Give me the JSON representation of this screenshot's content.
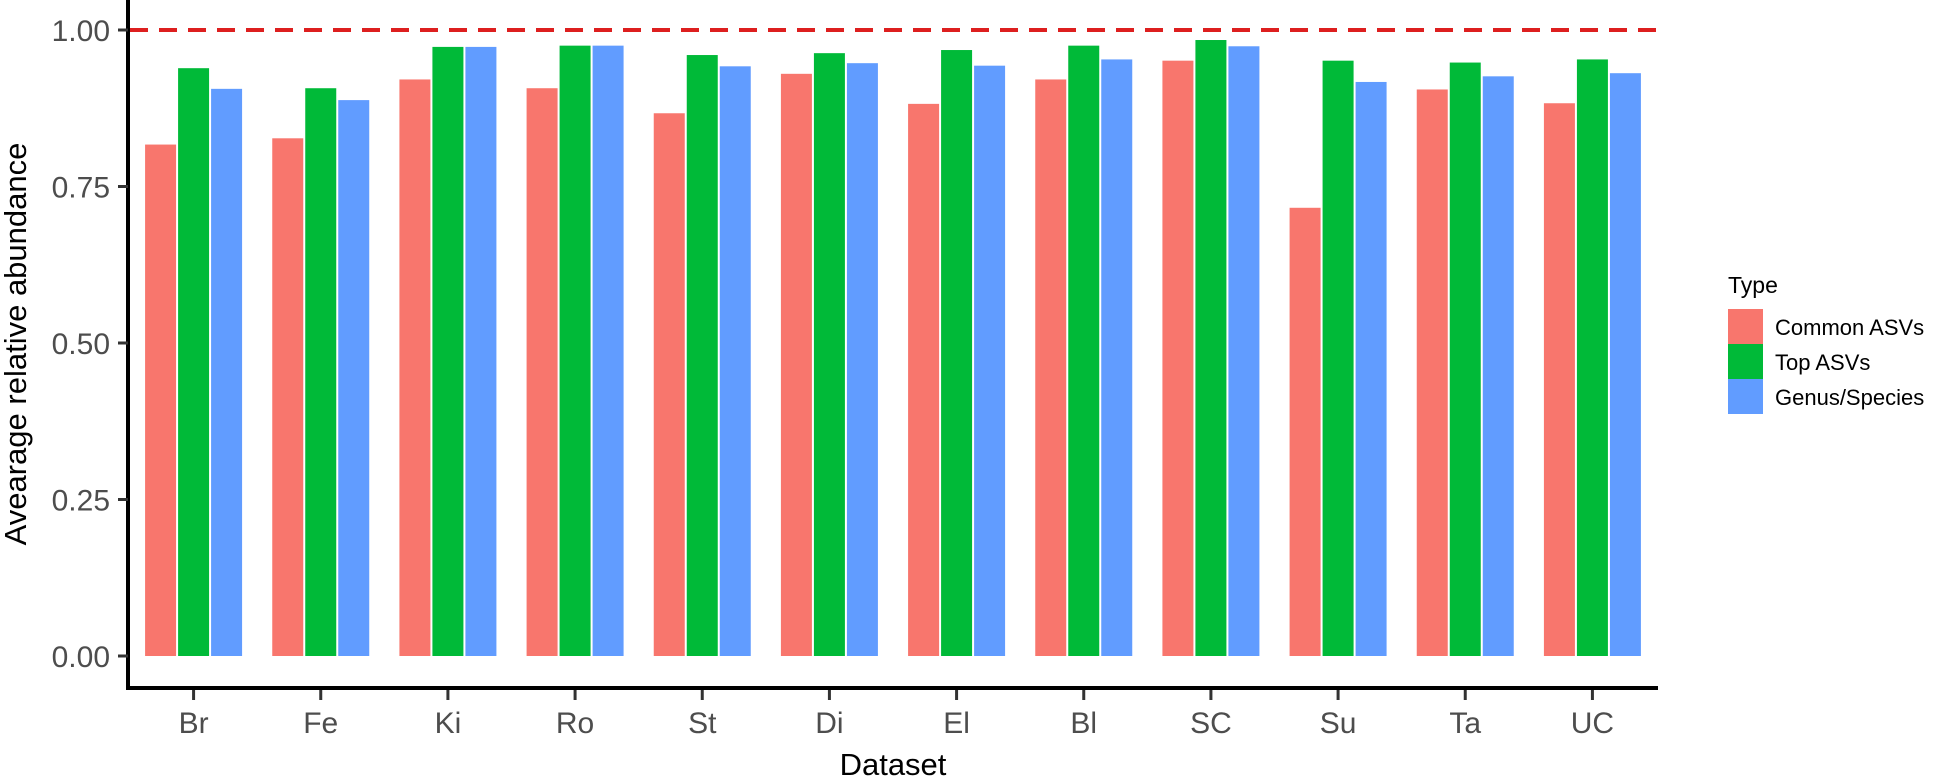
{
  "chart_data": {
    "type": "bar",
    "title": "",
    "xlabel": "Dataset",
    "ylabel": "Avearage relative abundance",
    "ylim": [
      0,
      1
    ],
    "yticks": [
      "0.00",
      "0.25",
      "0.50",
      "0.75",
      "1.00"
    ],
    "ytick_values": [
      0,
      0.25,
      0.5,
      0.75,
      1.0
    ],
    "grid": false,
    "reference_line": {
      "value": 1.0,
      "style": "dashed",
      "color": "#dd1f1f"
    },
    "categories": [
      "Br",
      "Fe",
      "Ki",
      "Ro",
      "St",
      "Di",
      "El",
      "Bl",
      "SC",
      "Su",
      "Ta",
      "UC"
    ],
    "legend": {
      "title": "Type",
      "placement": "right"
    },
    "series": [
      {
        "name": "Common ASVs",
        "color": "#f8766d",
        "values": [
          0.817,
          0.827,
          0.921,
          0.907,
          0.867,
          0.93,
          0.882,
          0.921,
          0.951,
          0.716,
          0.905,
          0.883
        ]
      },
      {
        "name": "Top ASVs",
        "color": "#00ba38",
        "values": [
          0.939,
          0.907,
          0.973,
          0.975,
          0.96,
          0.963,
          0.968,
          0.975,
          0.984,
          0.951,
          0.948,
          0.953
        ]
      },
      {
        "name": "Genus/Species",
        "color": "#619cff",
        "values": [
          0.906,
          0.888,
          0.973,
          0.975,
          0.942,
          0.947,
          0.943,
          0.953,
          0.974,
          0.917,
          0.926,
          0.931
        ]
      }
    ]
  }
}
